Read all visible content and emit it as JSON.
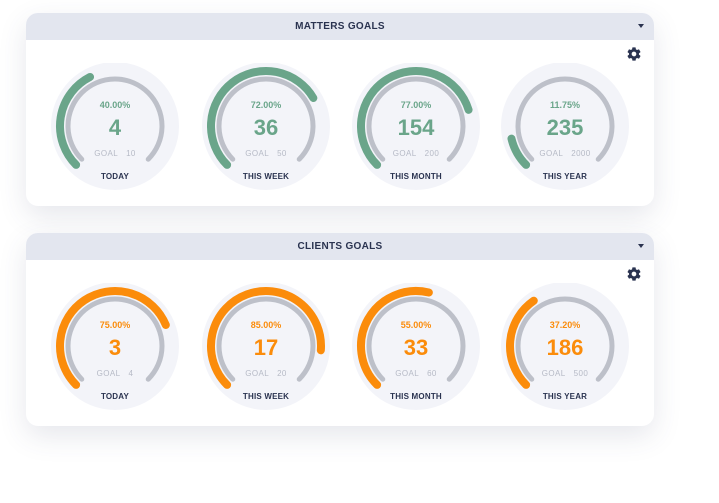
{
  "colors": {
    "matters_accent": "#6aa58a",
    "clients_accent": "#fb8c0b",
    "track": "#bdc0c9",
    "halo": "#f3f4f9",
    "header_bg": "#e3e6ef",
    "text_dark": "#2a3350"
  },
  "icons": {
    "settings": "gear-icon",
    "collapse": "caret-down-icon"
  },
  "matters": {
    "title": "MATTERS GOALS",
    "goal_prefix": "GOAL",
    "gauges": [
      {
        "label": "TODAY",
        "percent_text": "40.00%",
        "value": "4",
        "goal": "10",
        "progress": 0.4
      },
      {
        "label": "THIS WEEK",
        "percent_text": "72.00%",
        "value": "36",
        "goal": "50",
        "progress": 0.72
      },
      {
        "label": "THIS MONTH",
        "percent_text": "77.00%",
        "value": "154",
        "goal": "200",
        "progress": 0.77
      },
      {
        "label": "THIS YEAR",
        "percent_text": "11.75%",
        "value": "235",
        "goal": "2000",
        "progress": 0.1175
      }
    ]
  },
  "clients": {
    "title": "CLIENTS GOALS",
    "goal_prefix": "GOAL",
    "gauges": [
      {
        "label": "TODAY",
        "percent_text": "75.00%",
        "value": "3",
        "goal": "4",
        "progress": 0.75
      },
      {
        "label": "THIS WEEK",
        "percent_text": "85.00%",
        "value": "17",
        "goal": "20",
        "progress": 0.85
      },
      {
        "label": "THIS MONTH",
        "percent_text": "55.00%",
        "value": "33",
        "goal": "60",
        "progress": 0.55
      },
      {
        "label": "THIS YEAR",
        "percent_text": "37.20%",
        "value": "186",
        "goal": "500",
        "progress": 0.372
      }
    ]
  }
}
